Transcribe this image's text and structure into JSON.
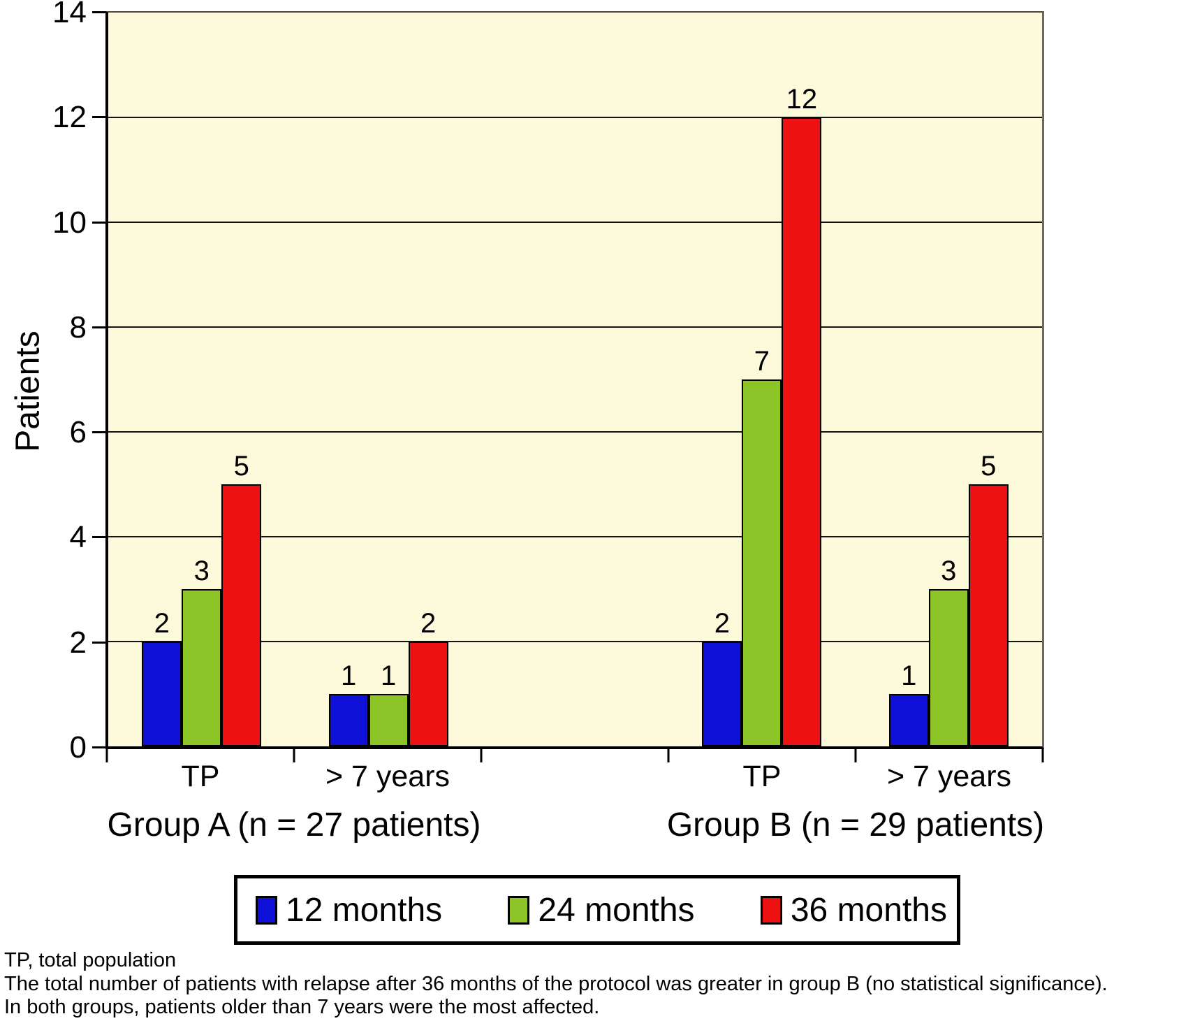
{
  "chart_data": {
    "type": "bar",
    "title": "",
    "xlabel": "",
    "ylabel": "Patients",
    "ylim": [
      0,
      14
    ],
    "yticks": [
      0,
      2,
      4,
      6,
      8,
      10,
      12,
      14
    ],
    "grid": true,
    "plot_bg_color": "#FCFADB",
    "legend_position": "bottom",
    "bar_value_labels": true,
    "num_slots": 5,
    "categories": [
      {
        "label": "TP",
        "slot": 0
      },
      {
        "label": "> 7 years",
        "slot": 1
      },
      {
        "label": "TP",
        "slot": 3
      },
      {
        "label": "> 7 years",
        "slot": 4
      }
    ],
    "group_labels": [
      {
        "label": "Group A (n = 27 patients)",
        "slot_span": [
          0,
          2
        ]
      },
      {
        "label": "Group B (n = 29 patients)",
        "slot_span": [
          3,
          5
        ]
      }
    ],
    "series": [
      {
        "name": "12 months",
        "color": "#0E10D8",
        "values": [
          2,
          1,
          2,
          1
        ]
      },
      {
        "name": "24 months",
        "color": "#8DC428",
        "values": [
          3,
          1,
          7,
          3
        ]
      },
      {
        "name": "36 months",
        "color": "#EE1111",
        "values": [
          5,
          2,
          12,
          5
        ]
      }
    ]
  },
  "footer": {
    "line1": "TP, total population",
    "line2": "The total number of patients with relapse after 36 months of the protocol was greater in group B (no statistical significance).",
    "line3": "In both groups, patients older than 7 years were the most affected."
  }
}
